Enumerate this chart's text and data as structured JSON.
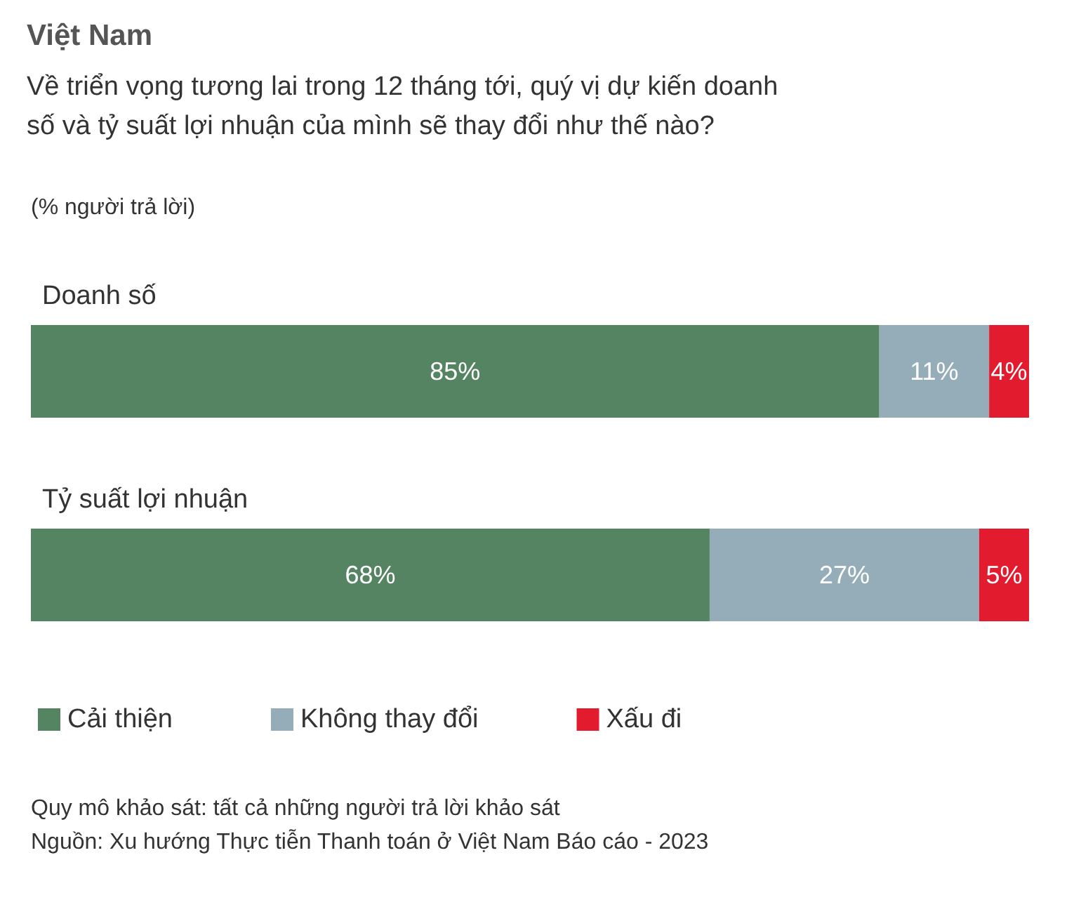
{
  "chart_data": {
    "type": "bar",
    "orientation": "horizontal",
    "stacked": true,
    "title": "Việt Nam",
    "subtitle": "Về triển vọng tương lai trong 12 tháng tới, quý vị dự kiến doanh\nsố và tỷ suất lợi nhuận của mình sẽ thay đổi như thế nào?",
    "categories": [
      "Doanh số",
      "Tỷ suất lợi nhuận"
    ],
    "series": [
      {
        "name": "Cải thiện",
        "color": "#548462",
        "values": [
          85,
          68
        ],
        "value_labels": [
          "85%",
          "68%"
        ]
      },
      {
        "name": "Không thay đổi",
        "color": "#94adb9",
        "values": [
          11,
          27
        ],
        "value_labels": [
          "11%",
          "27%"
        ]
      },
      {
        "name": "Xấu đi",
        "color": "#e31b2f",
        "values": [
          4,
          5
        ],
        "value_labels": [
          "4%",
          "5%"
        ]
      }
    ],
    "tick_labels": "y",
    "legend": "bottom",
    "annotations": [
      "(% người trả lời)",
      "Quy mô khảo sát: tất cả những người trả lời khảo sát",
      "Nguồn: Xu hướng Thực tiễn Thanh toán ở Việt Nam Báo cáo - 2023"
    ]
  }
}
